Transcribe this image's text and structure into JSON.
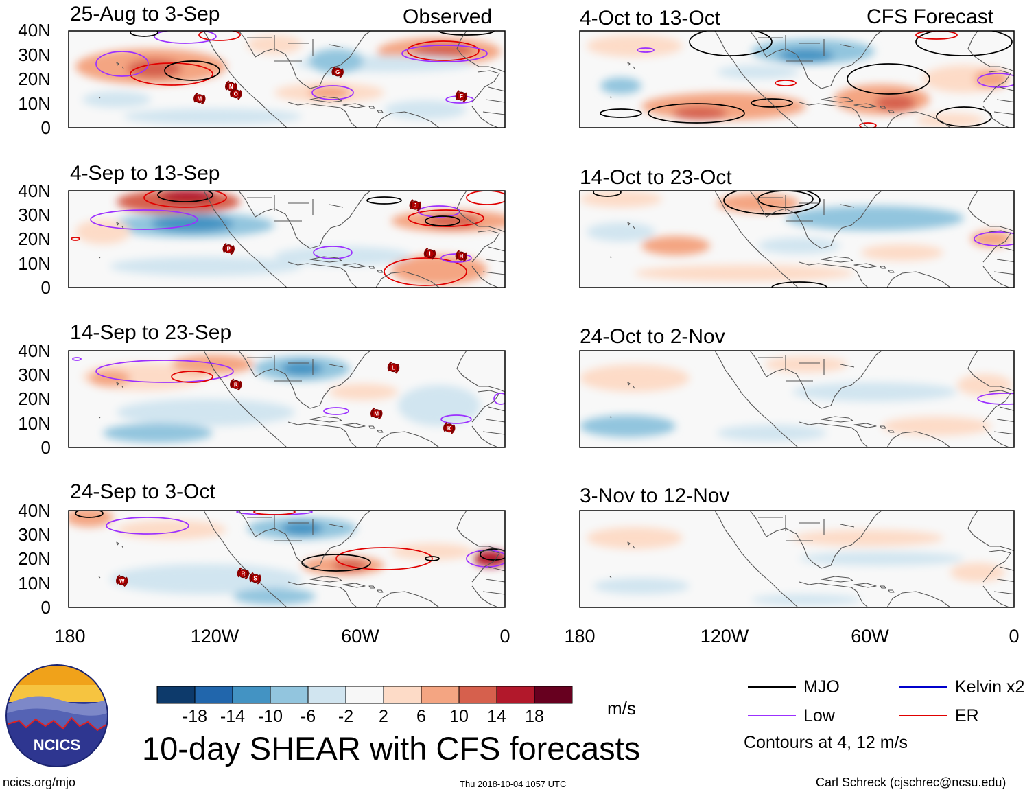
{
  "header": {
    "left_label": "Observed",
    "right_label": "CFS Forecast"
  },
  "chart_data": {
    "type": "heatmap",
    "title": "10-day SHEAR with CFS forecasts",
    "units": "m/s",
    "xlim": [
      -180,
      0
    ],
    "ylim": [
      0,
      40
    ],
    "y_ticks": [
      "40N",
      "30N",
      "20N",
      "10N",
      "0"
    ],
    "x_ticks": [
      "180",
      "120W",
      "60W",
      "0"
    ],
    "panels": [
      {
        "id": "obs1",
        "period": "25-Aug to 3-Sep",
        "kind": "Observed",
        "storms": [
          {
            "label": "M",
            "lon": -126,
            "lat": 12
          },
          {
            "label": "N",
            "lon": -113,
            "lat": 17
          },
          {
            "label": "O",
            "lon": -111,
            "lat": 14
          },
          {
            "label": "G",
            "lon": -69,
            "lat": 23
          },
          {
            "label": "F",
            "lon": -18,
            "lat": 13
          }
        ]
      },
      {
        "id": "obs2",
        "period": "4-Sep to 13-Sep",
        "kind": "Observed",
        "storms": [
          {
            "label": "J",
            "lon": -37,
            "lat": 34
          },
          {
            "label": "P",
            "lon": -114,
            "lat": 16
          },
          {
            "label": "I",
            "lon": -31,
            "lat": 14
          },
          {
            "label": "H",
            "lon": -18,
            "lat": 13
          }
        ]
      },
      {
        "id": "obs3",
        "period": "14-Sep to 23-Sep",
        "kind": "Observed",
        "storms": [
          {
            "label": "L",
            "lon": -46,
            "lat": 33
          },
          {
            "label": "R",
            "lon": -111,
            "lat": 26
          },
          {
            "label": "M",
            "lon": -53,
            "lat": 14
          },
          {
            "label": "K",
            "lon": -23,
            "lat": 8
          }
        ]
      },
      {
        "id": "obs4",
        "period": "24-Sep to 3-Oct",
        "kind": "Observed",
        "storms": [
          {
            "label": "W",
            "lon": -158,
            "lat": 11
          },
          {
            "label": "R",
            "lon": -108,
            "lat": 14
          },
          {
            "label": "S",
            "lon": -103,
            "lat": 12
          }
        ]
      },
      {
        "id": "fc1",
        "period": "4-Oct to 13-Oct",
        "kind": "CFS Forecast",
        "storms": []
      },
      {
        "id": "fc2",
        "period": "14-Oct to 23-Oct",
        "kind": "CFS Forecast",
        "storms": []
      },
      {
        "id": "fc3",
        "period": "24-Oct to 2-Nov",
        "kind": "CFS Forecast",
        "storms": []
      },
      {
        "id": "fc4",
        "period": "3-Nov to 12-Nov",
        "kind": "CFS Forecast",
        "storms": []
      }
    ],
    "colorbar": {
      "labels": [
        "-18",
        "-14",
        "-10",
        "-6",
        "-2",
        "2",
        "6",
        "10",
        "14",
        "18"
      ],
      "colors": [
        "#0d3a6b",
        "#2166ac",
        "#4393c3",
        "#92c5de",
        "#d1e5f0",
        "#f7f7f7",
        "#fddbc7",
        "#f4a582",
        "#d6604d",
        "#b2182b",
        "#67001f"
      ]
    },
    "legend": [
      {
        "name": "MJO",
        "color": "#000000"
      },
      {
        "name": "Kelvin x2",
        "color": "#0000cc"
      },
      {
        "name": "Low",
        "color": "#9b30ff"
      },
      {
        "name": "ER",
        "color": "#e00000"
      }
    ],
    "contour_note": "Contours at 4, 12 m/s"
  },
  "footer": {
    "logo_text": "NCICS",
    "website": "ncics.org/mjo",
    "timestamp": "Thu 2018-10-04 1057 UTC",
    "author": "Carl Schreck (cjschrec@ncsu.edu)"
  }
}
